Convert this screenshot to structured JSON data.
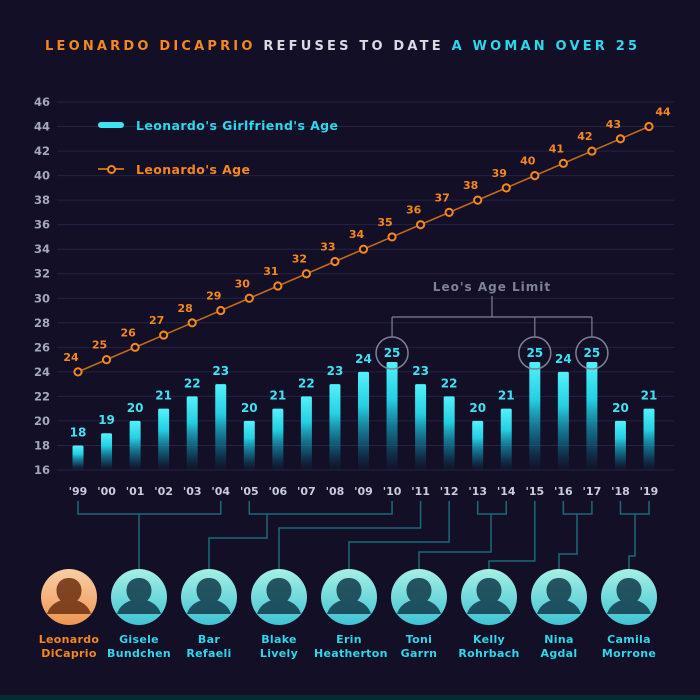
{
  "title": {
    "highlight_left": "LEONARDO DICAPRIO",
    "middle": "REFUSES TO DATE",
    "highlight_right": "A WOMAN OVER 25"
  },
  "legend": {
    "girlfriend_label": "Leonardo's Girlfriend's Age",
    "leo_label": "Leonardo's Age"
  },
  "chart_data": {
    "type": "bar",
    "categories": [
      "'99",
      "'00",
      "'01",
      "'02",
      "'03",
      "'04",
      "'05",
      "'06",
      "'07",
      "'08",
      "'09",
      "'10",
      "'11",
      "'12",
      "'13",
      "'14",
      "'15",
      "'16",
      "'17",
      "'18",
      "'19"
    ],
    "series": [
      {
        "name": "Leonardo's Girlfriend's Age",
        "type": "bar",
        "color": "#3ee3f2",
        "values": [
          18,
          19,
          20,
          21,
          22,
          23,
          20,
          21,
          22,
          23,
          24,
          25,
          23,
          22,
          20,
          21,
          25,
          24,
          25,
          20,
          21
        ]
      },
      {
        "name": "Leonardo's Age",
        "type": "line",
        "color": "#f6871f",
        "values": [
          24,
          25,
          26,
          27,
          28,
          29,
          30,
          31,
          32,
          33,
          34,
          35,
          36,
          37,
          38,
          39,
          40,
          41,
          42,
          43,
          44
        ]
      }
    ],
    "ylim": [
      16,
      46
    ],
    "ytick_step": 2,
    "grid": true,
    "legend_position": "top-left",
    "annotation": {
      "label": "Leo's Age Limit",
      "circled_categories": [
        "'10",
        "'15",
        "'17"
      ],
      "circled_value": 25
    }
  },
  "people": [
    {
      "first": "Leonardo",
      "last": "DiCaprio",
      "accent": "orange",
      "years": []
    },
    {
      "first": "Gisele",
      "last": "Bundchen",
      "accent": "cyan",
      "years": [
        "'99",
        "'04"
      ]
    },
    {
      "first": "Bar",
      "last": "Refaeli",
      "accent": "cyan",
      "years": [
        "'05",
        "'10"
      ]
    },
    {
      "first": "Blake",
      "last": "Lively",
      "accent": "cyan",
      "years": [
        "'11"
      ]
    },
    {
      "first": "Erin",
      "last": "Heatherton",
      "accent": "cyan",
      "years": [
        "'12"
      ]
    },
    {
      "first": "Toni",
      "last": "Garrn",
      "accent": "cyan",
      "years": [
        "'13",
        "'14"
      ]
    },
    {
      "first": "Kelly",
      "last": "Rohrbach",
      "accent": "cyan",
      "years": [
        "'15"
      ]
    },
    {
      "first": "Nina",
      "last": "Agdal",
      "accent": "cyan",
      "years": [
        "'16",
        "'17"
      ]
    },
    {
      "first": "Camila",
      "last": "Morrone",
      "accent": "cyan",
      "years": [
        "'18",
        "'19"
      ]
    }
  ],
  "colors": {
    "background": "#130f27",
    "orange": "#f6871f",
    "line_stroke": "#c06a1a",
    "cyan": "#3ee3f2",
    "cyan_text": "#2ed7ea",
    "annotation_gray": "#7d8296",
    "connector": "#1a6a7a",
    "axis_label": "#a3a8bc",
    "year_label": "#c9ccda",
    "grid": "#262343"
  }
}
